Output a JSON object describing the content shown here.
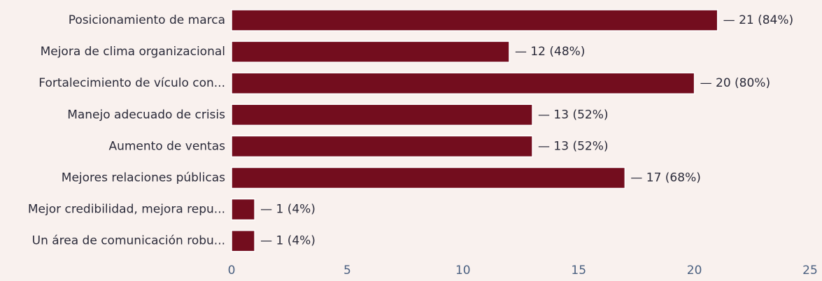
{
  "chart_data": {
    "type": "bar",
    "orientation": "horizontal",
    "categories": [
      "Posicionamiento de marca",
      "Mejora de clima organizacional",
      "Fortalecimiento de vículo con...",
      "Manejo adecuado de crisis",
      "Aumento de ventas",
      "Mejores relaciones públicas",
      "Mejor credibilidad, mejora repu...",
      "Un área de comunicación robu..."
    ],
    "values": [
      21,
      12,
      20,
      13,
      13,
      17,
      1,
      1
    ],
    "data_labels": [
      "— 21 (84%)",
      "— 12 (48%)",
      "— 20 (80%)",
      "— 13 (52%)",
      "— 13 (52%)",
      "— 17 (68%)",
      "— 1 (4%)",
      "— 1 (4%)"
    ],
    "xlim": [
      0,
      25
    ],
    "xticks": [
      "0",
      "5",
      "10",
      "15",
      "20",
      "25"
    ],
    "grid": false,
    "title": "",
    "xlabel": "",
    "ylabel": "",
    "colors": {
      "bar": "#730d1e",
      "background": "#f9f1ee",
      "text": "#2b2b3a",
      "tick": "#4a6080"
    }
  }
}
